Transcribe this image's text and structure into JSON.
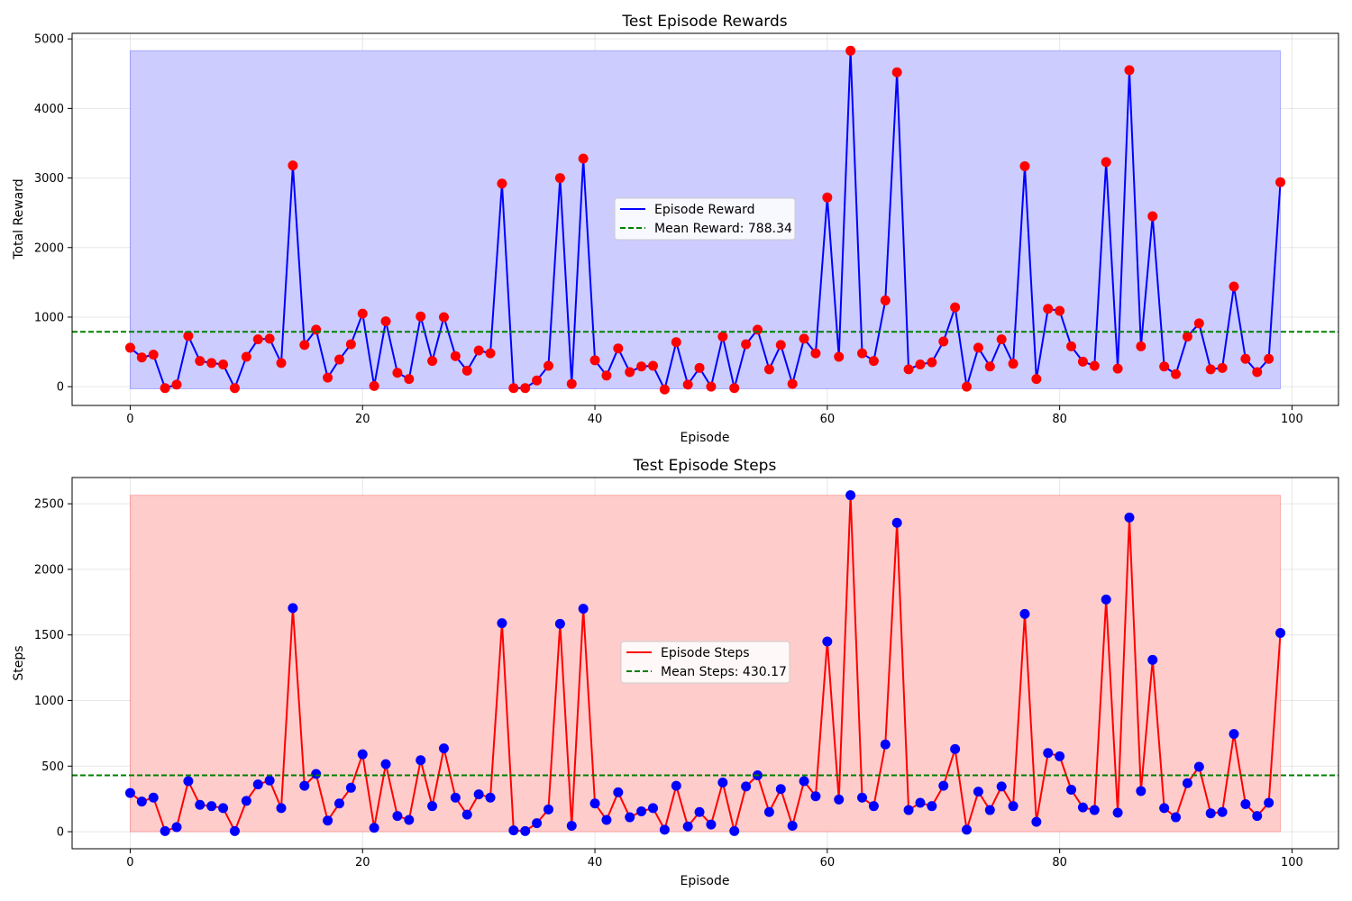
{
  "chart_data": [
    {
      "type": "line",
      "title": "Test Episode Rewards",
      "xlabel": "Episode",
      "ylabel": "Total Reward",
      "xlim": [
        -5,
        104
      ],
      "ylim": [
        -270,
        5080
      ],
      "xticks": [
        0,
        20,
        40,
        60,
        80,
        100
      ],
      "yticks": [
        0,
        1000,
        2000,
        3000,
        4000,
        5000
      ],
      "grid": true,
      "legend_position": "center",
      "colors": {
        "line": "#0000ff",
        "markers": "#ff0000",
        "fill": "#ccccff",
        "mean": "#008000"
      },
      "series": [
        {
          "name": "Episode Reward",
          "x": [
            0,
            1,
            2,
            3,
            4,
            5,
            6,
            7,
            8,
            9,
            10,
            11,
            12,
            13,
            14,
            15,
            16,
            17,
            18,
            19,
            20,
            21,
            22,
            23,
            24,
            25,
            26,
            27,
            28,
            29,
            30,
            31,
            32,
            33,
            34,
            35,
            36,
            37,
            38,
            39,
            40,
            41,
            42,
            43,
            44,
            45,
            46,
            47,
            48,
            49,
            50,
            51,
            52,
            53,
            54,
            55,
            56,
            57,
            58,
            59,
            60,
            61,
            62,
            63,
            64,
            65,
            66,
            67,
            68,
            69,
            70,
            71,
            72,
            73,
            74,
            75,
            76,
            77,
            78,
            79,
            80,
            81,
            82,
            83,
            84,
            85,
            86,
            87,
            88,
            89,
            90,
            91,
            92,
            93,
            94,
            95,
            96,
            97,
            98,
            99
          ],
          "values": [
            560,
            420,
            460,
            -20,
            30,
            730,
            370,
            340,
            320,
            -20,
            430,
            680,
            690,
            340,
            3180,
            600,
            820,
            130,
            390,
            610,
            1050,
            10,
            940,
            200,
            110,
            1010,
            370,
            1000,
            440,
            230,
            520,
            480,
            2920,
            -20,
            -20,
            90,
            300,
            3000,
            40,
            3280,
            380,
            160,
            550,
            210,
            290,
            300,
            -40,
            640,
            30,
            270,
            0,
            720,
            -20,
            610,
            820,
            250,
            600,
            40,
            690,
            480,
            2720,
            430,
            4830,
            480,
            370,
            1240,
            4520,
            250,
            320,
            350,
            650,
            1140,
            0,
            560,
            290,
            680,
            330,
            3170,
            110,
            1120,
            1090,
            580,
            360,
            300,
            3230,
            260,
            4550,
            580,
            2450,
            290,
            180,
            720,
            910,
            250,
            270,
            1440,
            400,
            210,
            400,
            2940
          ]
        }
      ],
      "mean": {
        "label": "Mean Reward: 788.34",
        "value": 788.34
      },
      "band": {
        "min": -30,
        "max": 4830
      }
    },
    {
      "type": "line",
      "title": "Test Episode Steps",
      "xlabel": "Episode",
      "ylabel": "Steps",
      "xlim": [
        -5,
        104
      ],
      "ylim": [
        -130,
        2700
      ],
      "xticks": [
        0,
        20,
        40,
        60,
        80,
        100
      ],
      "yticks": [
        0,
        500,
        1000,
        1500,
        2000,
        2500
      ],
      "grid": true,
      "legend_position": "center",
      "colors": {
        "line": "#ff0000",
        "markers": "#0000ff",
        "fill": "#ffcccc",
        "mean": "#008000"
      },
      "series": [
        {
          "name": "Episode Steps",
          "x": [
            0,
            1,
            2,
            3,
            4,
            5,
            6,
            7,
            8,
            9,
            10,
            11,
            12,
            13,
            14,
            15,
            16,
            17,
            18,
            19,
            20,
            21,
            22,
            23,
            24,
            25,
            26,
            27,
            28,
            29,
            30,
            31,
            32,
            33,
            34,
            35,
            36,
            37,
            38,
            39,
            40,
            41,
            42,
            43,
            44,
            45,
            46,
            47,
            48,
            49,
            50,
            51,
            52,
            53,
            54,
            55,
            56,
            57,
            58,
            59,
            60,
            61,
            62,
            63,
            64,
            65,
            66,
            67,
            68,
            69,
            70,
            71,
            72,
            73,
            74,
            75,
            76,
            77,
            78,
            79,
            80,
            81,
            82,
            83,
            84,
            85,
            86,
            87,
            88,
            89,
            90,
            91,
            92,
            93,
            94,
            95,
            96,
            97,
            98,
            99
          ],
          "values": [
            295,
            230,
            260,
            5,
            35,
            385,
            205,
            195,
            180,
            5,
            235,
            360,
            390,
            180,
            1705,
            350,
            440,
            85,
            215,
            335,
            590,
            30,
            515,
            120,
            90,
            545,
            195,
            635,
            260,
            130,
            285,
            260,
            1590,
            10,
            5,
            65,
            170,
            1585,
            45,
            1700,
            215,
            90,
            300,
            110,
            155,
            180,
            15,
            350,
            40,
            150,
            55,
            375,
            5,
            345,
            430,
            150,
            325,
            45,
            385,
            270,
            1450,
            245,
            2565,
            260,
            195,
            665,
            2355,
            165,
            220,
            195,
            350,
            630,
            15,
            305,
            165,
            345,
            195,
            1660,
            75,
            600,
            575,
            320,
            185,
            165,
            1770,
            145,
            2395,
            310,
            1310,
            180,
            110,
            370,
            495,
            140,
            150,
            745,
            210,
            120,
            220,
            1515
          ]
        }
      ],
      "mean": {
        "label": "Mean Steps: 430.17",
        "value": 430.17
      },
      "band": {
        "min": 0,
        "max": 2565
      }
    }
  ]
}
